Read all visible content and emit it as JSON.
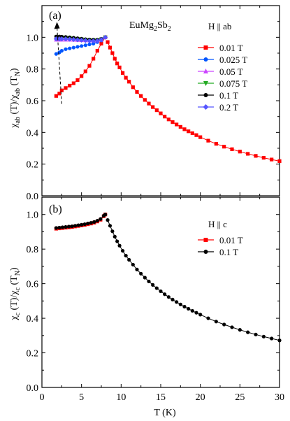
{
  "figure": {
    "xlabel": "T (K)",
    "xlim": [
      0,
      30
    ],
    "xticks": [
      0,
      5,
      10,
      15,
      20,
      25,
      30
    ]
  },
  "chart_data": [
    {
      "type": "line",
      "panel_label": "(a)",
      "compound": "EuMg",
      "compound_sub1": "2",
      "compound_mid": "Sb",
      "compound_sub2": "2",
      "field_label": "H || ab",
      "ylabel_main": "χ",
      "ylabel_sub1": "ab",
      "ylabel_mid": " (T)/χ",
      "ylabel_sub2": "ab",
      "ylabel_end": " (T",
      "ylabel_sub3": "N",
      "ylabel_close": ")",
      "ylim": [
        0,
        1.2
      ],
      "yticks": [
        "0.0",
        "0.2",
        "0.4",
        "0.6",
        "0.8",
        "1.0"
      ],
      "legend_position": "right",
      "annotation": "dashed arrow near T = 2 K pointing upward with increasing field",
      "series": [
        {
          "name": "0.01 T",
          "color": "#ff0000",
          "marker": "square",
          "x": [
            1.8,
            2.2,
            2.5,
            3,
            3.5,
            4,
            4.5,
            5,
            5.5,
            6,
            6.5,
            7,
            7.5,
            8
          ],
          "y": [
            0.63,
            0.645,
            0.665,
            0.68,
            0.695,
            0.71,
            0.73,
            0.755,
            0.785,
            0.82,
            0.865,
            0.915,
            0.96,
            1.0
          ]
        },
        {
          "name": "0.025 T",
          "color": "#0055ff",
          "marker": "circle",
          "x": [
            1.8,
            2.2,
            2.5,
            3,
            3.5,
            4,
            4.5,
            5,
            5.5,
            6,
            6.5,
            7,
            7.5,
            8
          ],
          "y": [
            0.895,
            0.905,
            0.915,
            0.925,
            0.93,
            0.935,
            0.94,
            0.945,
            0.95,
            0.955,
            0.96,
            0.97,
            0.98,
            1.0
          ]
        },
        {
          "name": "0.05 T",
          "color": "#cc44ff",
          "marker": "triangle-up",
          "x": [
            1.8,
            2.2,
            2.5,
            3,
            3.5,
            4,
            4.5,
            5,
            5.5,
            6,
            6.5,
            7,
            7.5,
            8
          ],
          "y": [
            0.985,
            0.985,
            0.985,
            0.985,
            0.985,
            0.984,
            0.983,
            0.982,
            0.981,
            0.98,
            0.98,
            0.98,
            0.985,
            1.0
          ]
        },
        {
          "name": "0.075 T",
          "color": "#22aa22",
          "marker": "triangle-down",
          "x": [
            1.8,
            2.2,
            2.5,
            3,
            3.5,
            4,
            4.5,
            5,
            5.5,
            6,
            6.5,
            7,
            7.5,
            8
          ],
          "y": [
            1.0,
            1.0,
            1.0,
            0.998,
            0.996,
            0.993,
            0.99,
            0.987,
            0.985,
            0.983,
            0.982,
            0.982,
            0.988,
            1.0
          ]
        },
        {
          "name": "0.1 T",
          "color": "#000000",
          "marker": "circle",
          "x": [
            1.8,
            2.2,
            2.5,
            3,
            3.5,
            4,
            4.5,
            5,
            5.5,
            6,
            6.5,
            7,
            7.5,
            8
          ],
          "y": [
            1.005,
            1.005,
            1.004,
            1.002,
            1.0,
            0.997,
            0.994,
            0.991,
            0.988,
            0.986,
            0.985,
            0.985,
            0.99,
            1.0
          ]
        },
        {
          "name": "0.2 T",
          "color": "#5555ff",
          "marker": "diamond",
          "x": [
            1.8,
            2.2,
            2.5,
            3,
            3.5,
            4,
            4.5,
            5,
            5.5,
            6,
            6.5,
            7,
            7.5,
            8
          ],
          "y": [
            0.99,
            0.99,
            0.99,
            0.99,
            0.988,
            0.986,
            0.984,
            0.982,
            0.98,
            0.978,
            0.977,
            0.978,
            0.985,
            1.0
          ]
        }
      ],
      "paramagnetic_tail": {
        "x": [
          8.3,
          8.6,
          8.9,
          9.2,
          9.5,
          9.8,
          10.2,
          10.6,
          11,
          11.5,
          12,
          12.5,
          13,
          13.5,
          14,
          14.5,
          15,
          15.5,
          16,
          16.5,
          17,
          17.5,
          18,
          18.5,
          19,
          19.5,
          20,
          21,
          22,
          23,
          24,
          25,
          26,
          27,
          28,
          29,
          30
        ],
        "y": [
          0.97,
          0.935,
          0.9,
          0.865,
          0.835,
          0.81,
          0.775,
          0.745,
          0.72,
          0.685,
          0.655,
          0.63,
          0.605,
          0.582,
          0.56,
          0.54,
          0.52,
          0.5,
          0.482,
          0.465,
          0.45,
          0.435,
          0.42,
          0.407,
          0.395,
          0.383,
          0.37,
          0.348,
          0.328,
          0.31,
          0.294,
          0.279,
          0.265,
          0.252,
          0.24,
          0.229,
          0.219
        ]
      }
    },
    {
      "type": "line",
      "panel_label": "(b)",
      "field_label": "H || c",
      "ylabel_main": "χ",
      "ylabel_sub1": "c",
      "ylabel_mid": " (T)/χ",
      "ylabel_sub2": "c",
      "ylabel_end": " (T",
      "ylabel_sub3": "N",
      "ylabel_close": ")",
      "ylim": [
        0,
        1.1
      ],
      "yticks": [
        "0.0",
        "0.2",
        "0.4",
        "0.6",
        "0.8",
        "1.0"
      ],
      "legend_position": "right",
      "series": [
        {
          "name": "0.01 T",
          "color": "#ff0000",
          "marker": "square",
          "x": [
            1.8,
            2.2,
            2.6,
            3,
            3.4,
            3.8,
            4.2,
            4.6,
            5,
            5.4,
            5.8,
            6.2,
            6.6,
            7,
            7.4,
            7.8,
            8.0
          ],
          "y": [
            0.918,
            0.92,
            0.922,
            0.924,
            0.926,
            0.928,
            0.931,
            0.934,
            0.937,
            0.94,
            0.944,
            0.948,
            0.953,
            0.96,
            0.97,
            0.99,
            1.0
          ]
        },
        {
          "name": "0.1 T",
          "color": "#000000",
          "marker": "circle",
          "x": [
            1.8,
            2.2,
            2.6,
            3,
            3.4,
            3.8,
            4.2,
            4.6,
            5,
            5.4,
            5.8,
            6.2,
            6.6,
            7,
            7.4,
            7.8,
            8.0
          ],
          "y": [
            0.922,
            0.924,
            0.926,
            0.928,
            0.93,
            0.932,
            0.935,
            0.938,
            0.941,
            0.944,
            0.948,
            0.952,
            0.957,
            0.964,
            0.974,
            0.993,
            1.0
          ]
        }
      ],
      "paramagnetic_tail": {
        "x": [
          8.3,
          8.6,
          8.9,
          9.2,
          9.5,
          9.8,
          10.2,
          10.6,
          11,
          11.5,
          12,
          12.5,
          13,
          13.5,
          14,
          14.5,
          15,
          15.5,
          16,
          16.5,
          17,
          17.5,
          18,
          18.5,
          19,
          19.5,
          20,
          21,
          22,
          23,
          24,
          25,
          26,
          27,
          28,
          29,
          30
        ],
        "y": [
          0.968,
          0.935,
          0.903,
          0.872,
          0.845,
          0.82,
          0.79,
          0.762,
          0.738,
          0.71,
          0.682,
          0.658,
          0.635,
          0.613,
          0.593,
          0.574,
          0.556,
          0.539,
          0.523,
          0.508,
          0.494,
          0.48,
          0.467,
          0.455,
          0.443,
          0.432,
          0.421,
          0.4,
          0.381,
          0.364,
          0.348,
          0.333,
          0.319,
          0.306,
          0.294,
          0.283,
          0.272
        ]
      }
    }
  ]
}
